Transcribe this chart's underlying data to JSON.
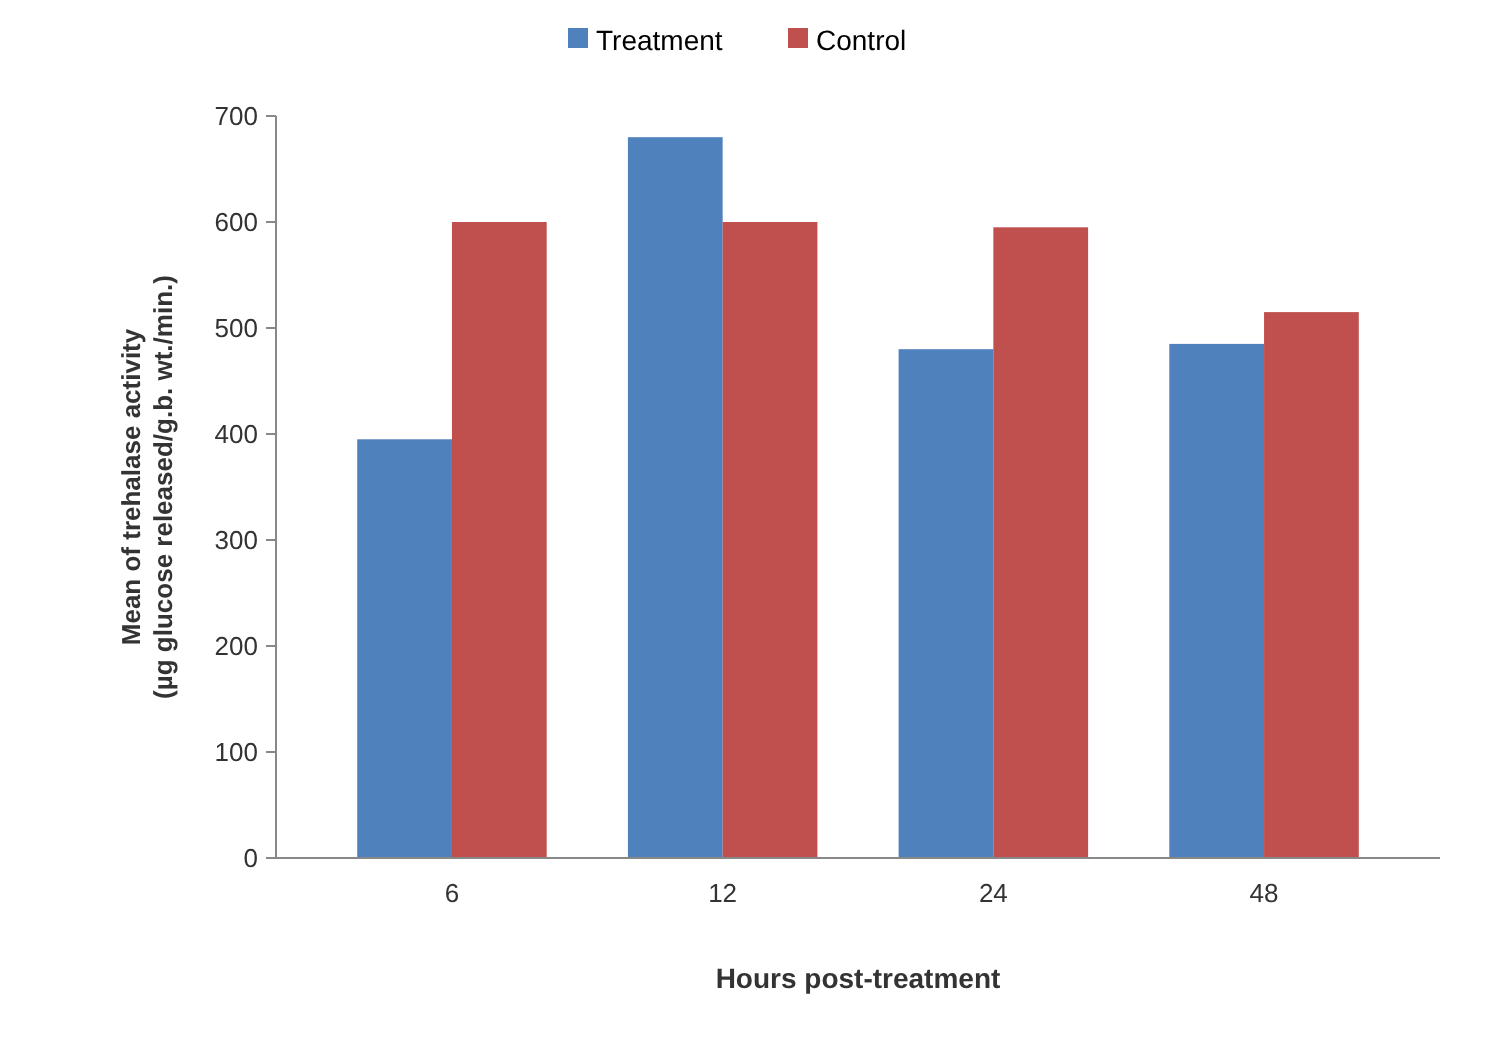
{
  "chart_data": {
    "type": "bar",
    "xlabel": "Hours post-treatment",
    "ylabel": "Mean of trehalase activity (µg glucose released/g.b. wt./min.)",
    "categories": [
      "6",
      "12",
      "24",
      "48"
    ],
    "series": [
      {
        "name": "Treatment",
        "color": "#4f81bd",
        "values": [
          395,
          680,
          480,
          485
        ]
      },
      {
        "name": "Control",
        "color": "#c0504d",
        "values": [
          600,
          600,
          595,
          515
        ]
      }
    ],
    "ylim": [
      0,
      700
    ],
    "yticks": [
      0,
      100,
      200,
      300,
      400,
      500,
      600,
      700
    ],
    "grid": false,
    "legend": "top"
  }
}
